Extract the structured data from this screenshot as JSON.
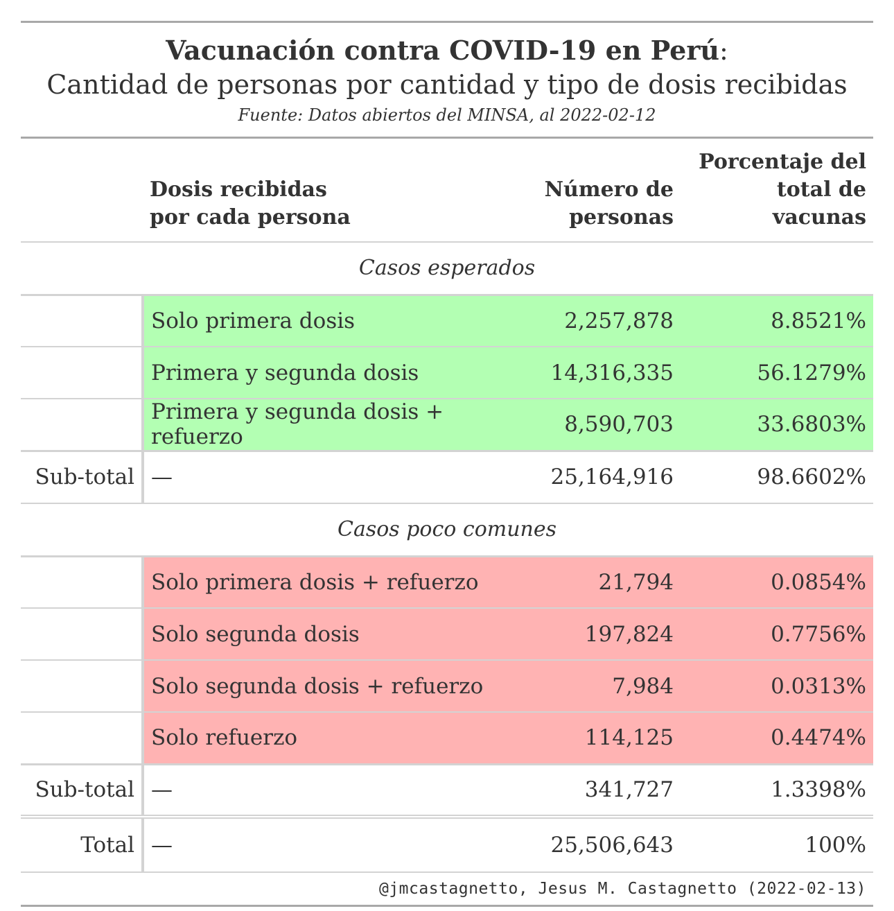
{
  "title": {
    "line1_bold": "Vacunación contra COVID-19 en Perú",
    "line1_colon": ":",
    "line2": "Cantidad de personas por cantidad y tipo de dosis recibidas",
    "source": "Fuente: Datos abiertos del MINSA, al 2022-02-12"
  },
  "headers": {
    "dose_l1": "Dosis recibidas",
    "dose_l2": "por cada persona",
    "num_l1": "Número de",
    "num_l2": "personas",
    "pct_l1": "Porcentaje del",
    "pct_l2": "total de vacunas"
  },
  "groups": {
    "expected": {
      "label": "Casos esperados",
      "rows": [
        {
          "dose": "Solo primera dosis",
          "num": "2,257,878",
          "pct": "8.8521%"
        },
        {
          "dose": "Primera y segunda dosis",
          "num": "14,316,335",
          "pct": "56.1279%"
        },
        {
          "dose": "Primera y segunda dosis + refuerzo",
          "num": "8,590,703",
          "pct": "33.6803%"
        }
      ],
      "subtotal": {
        "label": "Sub-total",
        "dose": "—",
        "num": "25,164,916",
        "pct": "98.6602%"
      }
    },
    "uncommon": {
      "label": "Casos poco comunes",
      "rows": [
        {
          "dose": "Solo primera dosis + refuerzo",
          "num": "21,794",
          "pct": "0.0854%"
        },
        {
          "dose": "Solo segunda dosis",
          "num": "197,824",
          "pct": "0.7756%"
        },
        {
          "dose": "Solo segunda dosis + refuerzo",
          "num": "7,984",
          "pct": "0.0313%"
        },
        {
          "dose": "Solo refuerzo",
          "num": "114,125",
          "pct": "0.4474%"
        }
      ],
      "subtotal": {
        "label": "Sub-total",
        "dose": "—",
        "num": "341,727",
        "pct": "1.3398%"
      }
    }
  },
  "total": {
    "label": "Total",
    "dose": "—",
    "num": "25,506,643",
    "pct": "100%"
  },
  "footer": "@jmcastagnetto, Jesus M. Castagnetto (2022-02-13)",
  "colors": {
    "expected_fill": "#b3ffb3",
    "uncommon_fill": "#ffb3b3",
    "rule": "#d3d3d3"
  }
}
